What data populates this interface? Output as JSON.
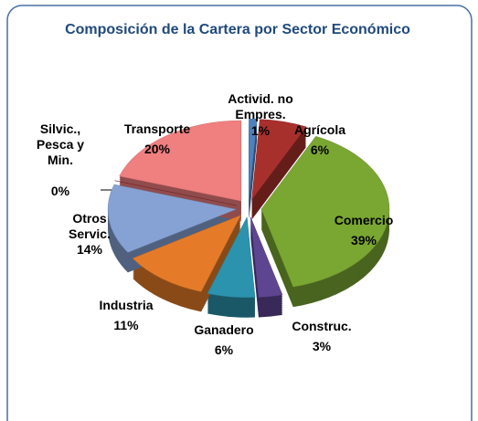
{
  "chart_data": {
    "type": "pie",
    "title": "Composición de la Cartera por Sector Económico",
    "categories": [
      "Activid. no Empres.",
      "Agrícola",
      "Comercio",
      "Construc.",
      "Ganadero",
      "Industria",
      "Otros Servic.",
      "Silvic., Pesca y Min.",
      "Transporte"
    ],
    "values": [
      1,
      6,
      39,
      3,
      6,
      11,
      14,
      0,
      20
    ],
    "value_labels": [
      "1%",
      "6%",
      "39%",
      "3%",
      "6%",
      "11%",
      "14%",
      "0%",
      "20%"
    ],
    "colors": [
      "#4f81bd",
      "#a8302c",
      "#7aa632",
      "#5e4592",
      "#2b93ad",
      "#e57b28",
      "#86a2d4",
      "#8a2a28",
      "#f07f80"
    ]
  }
}
